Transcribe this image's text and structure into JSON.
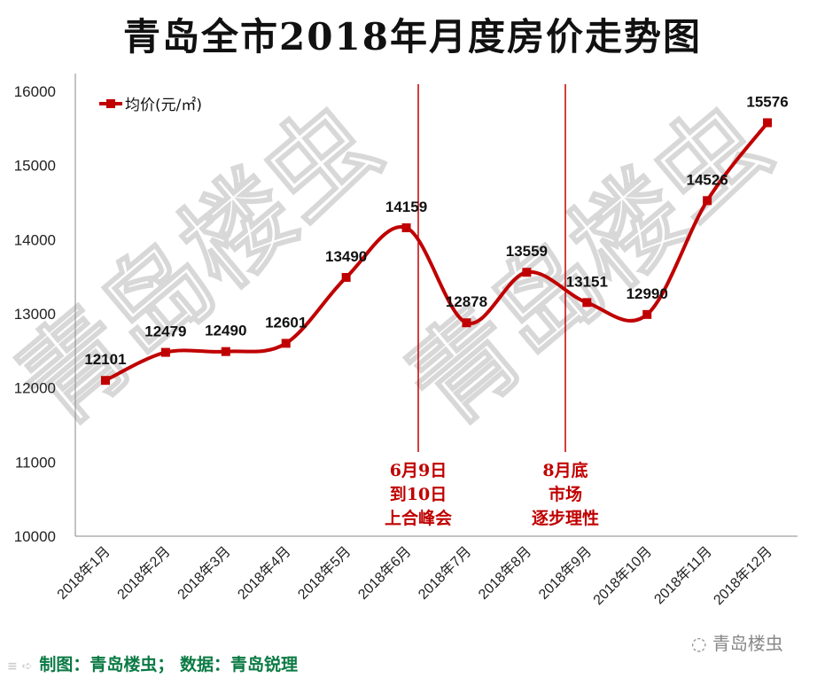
{
  "title": "青岛全市2018年月度房价走势图",
  "watermark": "青岛楼虫",
  "footer": {
    "credit": "制图：青岛楼虫；  数据：青岛锐理",
    "brand": "青岛楼虫"
  },
  "colors": {
    "line": "#c00000",
    "annotation": "#c00000",
    "footer": "#0b7a44"
  },
  "chart_data": {
    "type": "line",
    "title": "青岛全市2018年月度房价走势图",
    "categories": [
      "2018年1月",
      "2018年2月",
      "2018年3月",
      "2018年4月",
      "2018年5月",
      "2018年6月",
      "2018年7月",
      "2018年8月",
      "2018年9月",
      "2018年10月",
      "2018年11月",
      "2018年12月"
    ],
    "series": [
      {
        "name": "均价(元/㎡)",
        "values": [
          12101,
          12479,
          12490,
          12601,
          13490,
          14159,
          12878,
          13559,
          13151,
          12990,
          14526,
          15576
        ]
      }
    ],
    "ylim": [
      10000,
      16000
    ],
    "yticks": [
      10000,
      11000,
      12000,
      13000,
      14000,
      15000,
      16000
    ],
    "grid": false,
    "smooth": true,
    "legend": "top-left",
    "annotations": [
      {
        "between": [
          "2018年6月",
          "2018年7月"
        ],
        "lines": [
          "6月9日",
          "到10日",
          "上合峰会"
        ]
      },
      {
        "between": [
          "2018年9月",
          "2018年9月"
        ],
        "lines": [
          "8月底",
          "市场",
          "逐步理性"
        ]
      }
    ]
  }
}
